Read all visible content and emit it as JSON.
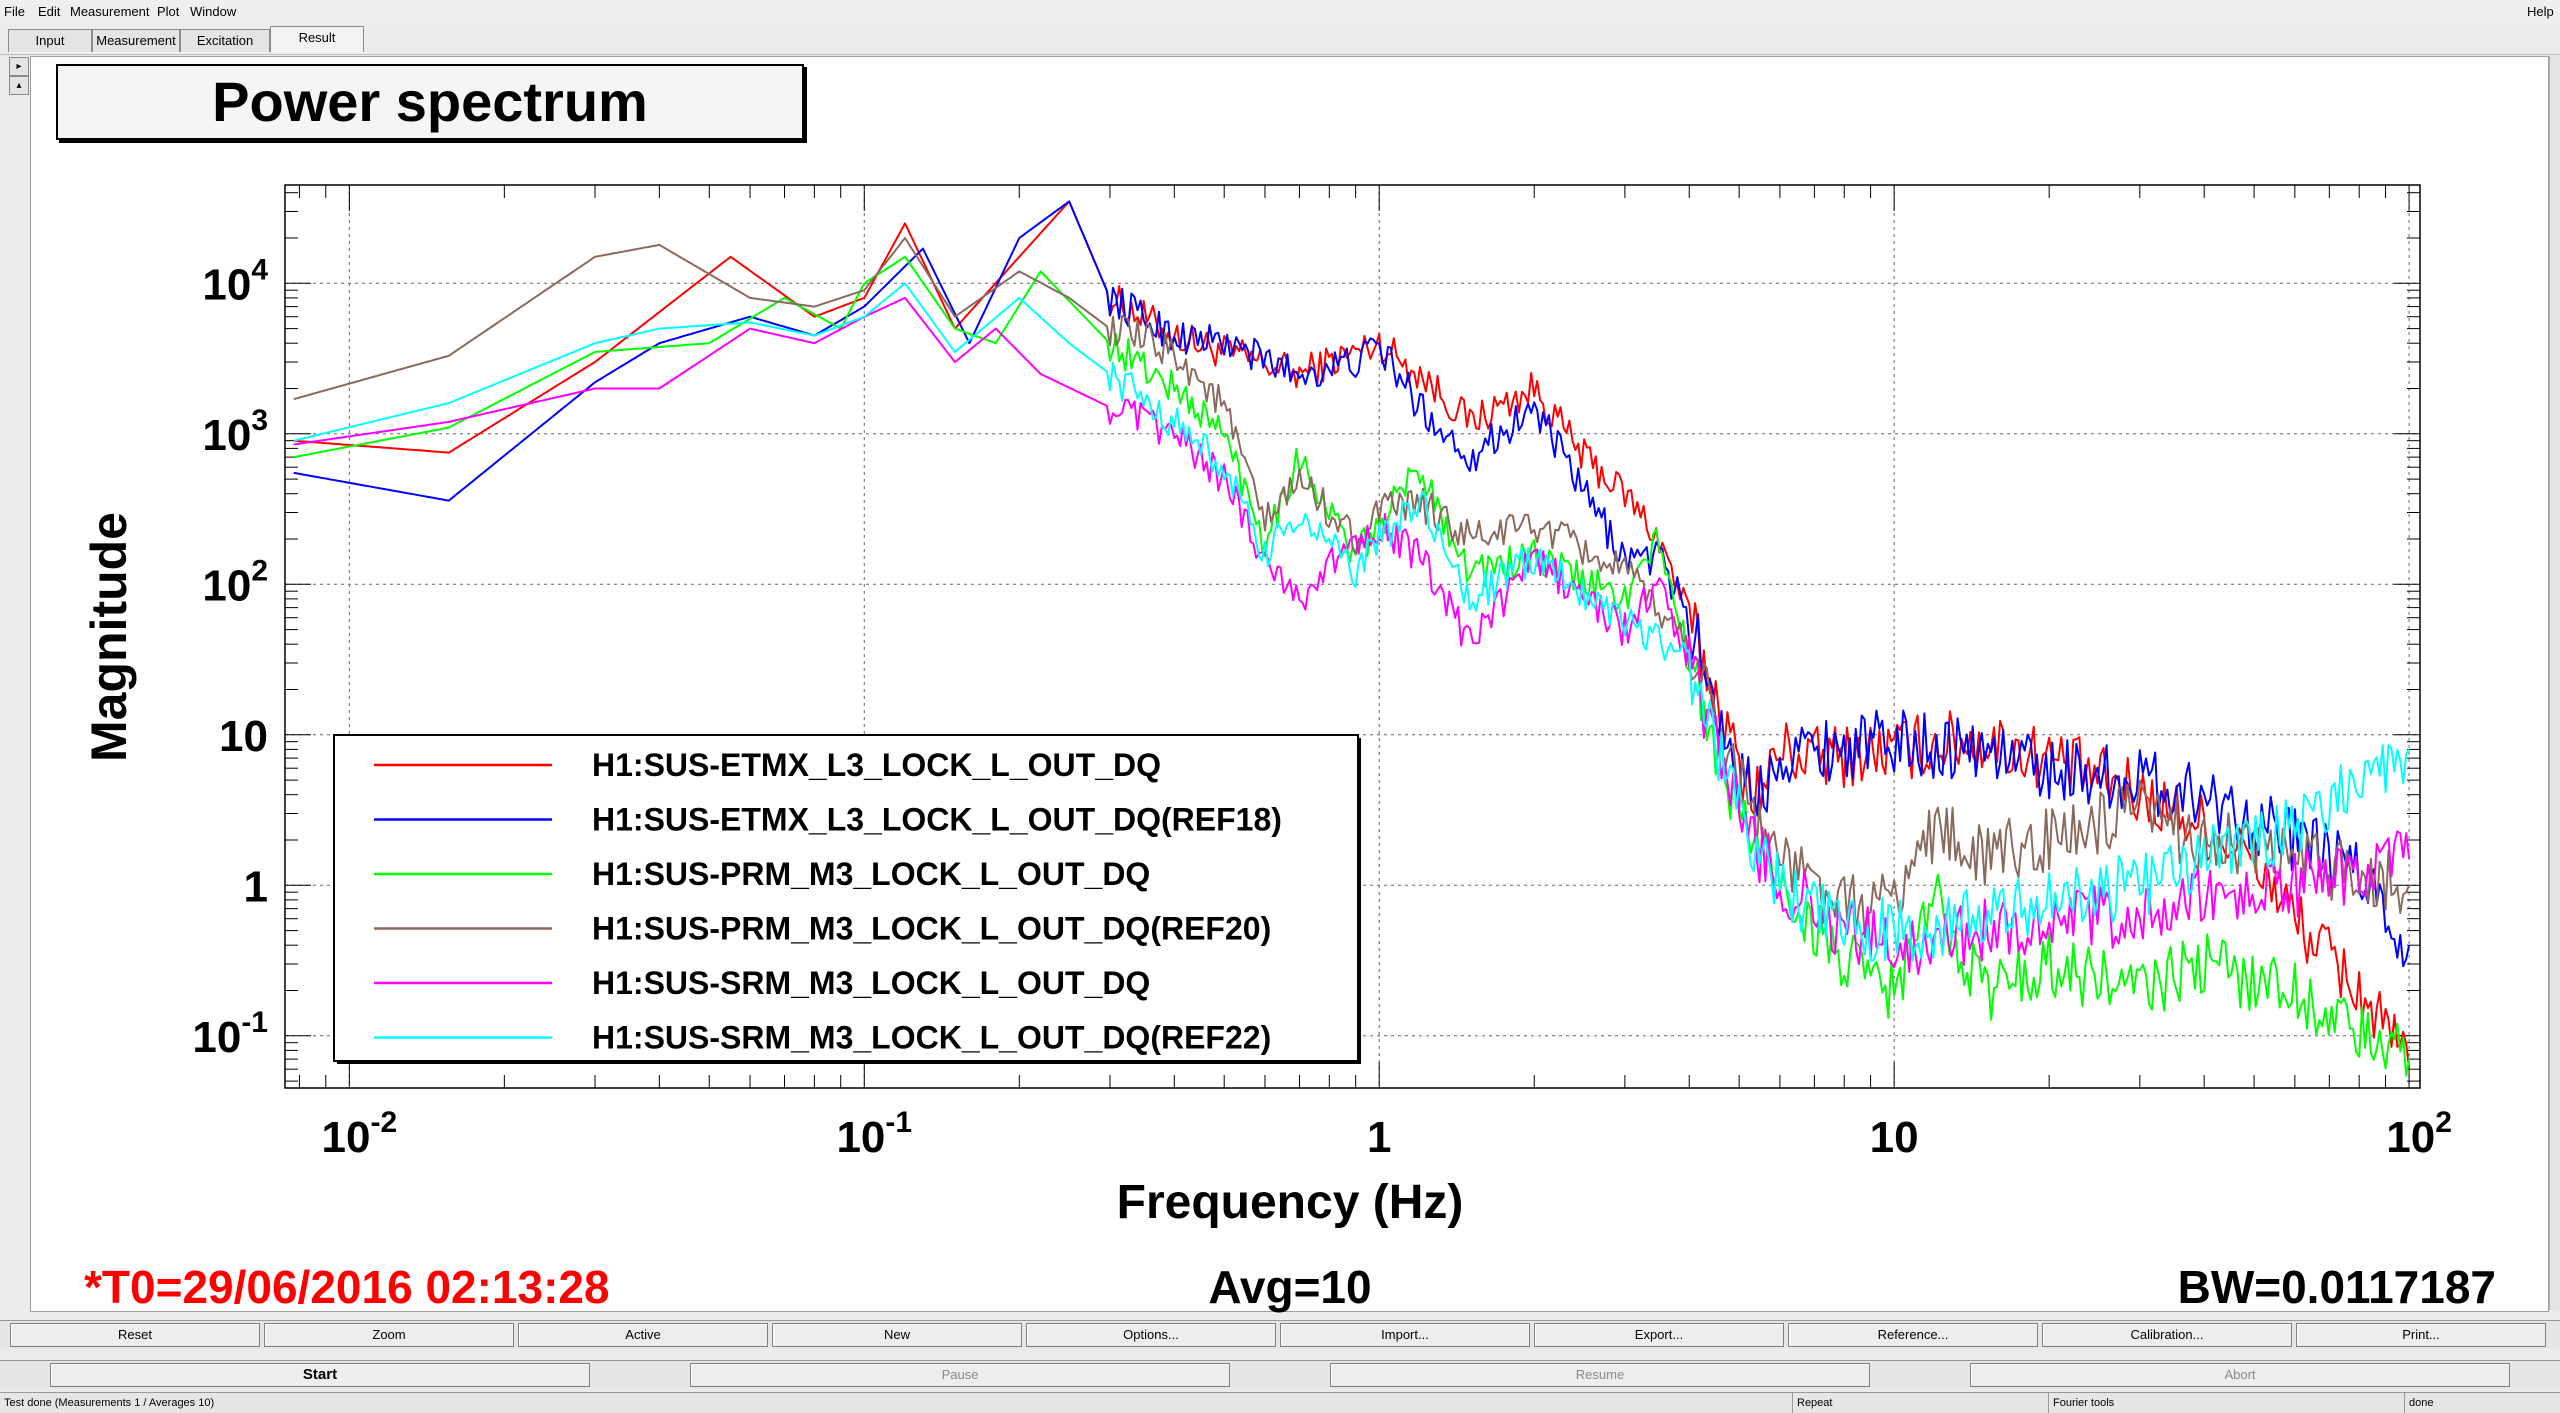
{
  "menu": {
    "file": "File",
    "edit": "Edit",
    "measurement": "Measurement",
    "plot": "Plot",
    "window": "Window",
    "help": "Help"
  },
  "tabs": {
    "input": "Input",
    "measurement": "Measurement",
    "excitation": "Excitation",
    "result": "Result"
  },
  "side_arrows": {
    "up": "▸",
    "down": "▴"
  },
  "plot_title": "Power spectrum",
  "footer": {
    "t0": "*T0=29/06/2016 02:13:28",
    "avg": "Avg=10",
    "bw": "BW=0.0117187"
  },
  "buttons_row1": {
    "reset": "Reset",
    "zoom": "Zoom",
    "active": "Active",
    "new": "New",
    "options": "Options...",
    "import": "Import...",
    "export": "Export...",
    "reference": "Reference...",
    "calibration": "Calibration...",
    "print": "Print..."
  },
  "buttons_row2": {
    "start": "Start",
    "pause": "Pause",
    "resume": "Resume",
    "abort": "Abort"
  },
  "status": {
    "message": "Test done (Measurements 1 / Averages 10)",
    "repeat": "Repeat",
    "fourier": "Fourier tools",
    "state": "done"
  },
  "chart_data": {
    "type": "line",
    "xlabel": "Frequency (Hz)",
    "ylabel": "Magnitude",
    "xscale": "log",
    "yscale": "log",
    "xlim": [
      0.0075,
      105
    ],
    "ylim": [
      0.045,
      45000
    ],
    "grid": true,
    "legend_position": "bottom-left",
    "x_ticks": [
      {
        "value": 0.01,
        "base": "10",
        "exp": "-2"
      },
      {
        "value": 0.1,
        "base": "10",
        "exp": "-1"
      },
      {
        "value": 1,
        "base": "1",
        "exp": ""
      },
      {
        "value": 10,
        "base": "10",
        "exp": ""
      },
      {
        "value": 100,
        "base": "10",
        "exp": "2"
      }
    ],
    "y_ticks": [
      {
        "value": 0.1,
        "base": "10",
        "exp": "-1"
      },
      {
        "value": 1,
        "base": "1",
        "exp": ""
      },
      {
        "value": 10,
        "base": "10",
        "exp": ""
      },
      {
        "value": 100,
        "base": "10",
        "exp": "2"
      },
      {
        "value": 1000,
        "base": "10",
        "exp": "3"
      },
      {
        "value": 10000,
        "base": "10",
        "exp": "4"
      }
    ],
    "series": [
      {
        "name": "H1:SUS-ETMX_L3_LOCK_L_OUT_DQ",
        "color": "#ff0000",
        "x": [
          0.0078,
          0.0156,
          0.03,
          0.055,
          0.08,
          0.1,
          0.12,
          0.15,
          0.2,
          0.25,
          0.3,
          0.4,
          0.5,
          0.7,
          0.9,
          1.0,
          1.2,
          1.5,
          2.0,
          2.5,
          3.0,
          3.5,
          4.0,
          5.0,
          5.5,
          6.0,
          7.0,
          10,
          13,
          15,
          20,
          30,
          40,
          50,
          60,
          80,
          100
        ],
        "y": [
          900,
          750,
          3000,
          15000,
          6000,
          8000,
          25000,
          5000,
          15000,
          35000,
          8000,
          4500,
          3500,
          2500,
          3500,
          4000,
          2500,
          1200,
          2000,
          700,
          400,
          200,
          60,
          6,
          4,
          8,
          7,
          8,
          9,
          9,
          7,
          4,
          2.5,
          1.5,
          0.6,
          0.2,
          0.06
        ]
      },
      {
        "name": "H1:SUS-ETMX_L3_LOCK_L_OUT_DQ(REF18)",
        "color": "#0000ff",
        "x": [
          0.0078,
          0.0156,
          0.03,
          0.04,
          0.06,
          0.08,
          0.1,
          0.13,
          0.16,
          0.2,
          0.25,
          0.3,
          0.4,
          0.5,
          0.7,
          0.9,
          1.0,
          1.2,
          1.5,
          2.0,
          2.5,
          3.0,
          3.5,
          4.0,
          5.0,
          5.5,
          6.0,
          7.0,
          10,
          15,
          20,
          30,
          40,
          60,
          80,
          100
        ],
        "y": [
          550,
          360,
          2200,
          4000,
          6000,
          4500,
          7000,
          17000,
          4000,
          20000,
          35000,
          8000,
          4500,
          4000,
          2500,
          3000,
          3800,
          1500,
          700,
          1500,
          400,
          150,
          150,
          60,
          5,
          4,
          8,
          8,
          9,
          8,
          6,
          5,
          4,
          2,
          1.2,
          0.4
        ]
      },
      {
        "name": "H1:SUS-PRM_M3_LOCK_L_OUT_DQ",
        "color": "#00ff00",
        "x": [
          0.0078,
          0.0156,
          0.03,
          0.05,
          0.07,
          0.09,
          0.1,
          0.12,
          0.15,
          0.18,
          0.22,
          0.3,
          0.4,
          0.5,
          0.6,
          0.7,
          0.9,
          1.0,
          1.2,
          1.5,
          2.0,
          3.0,
          3.5,
          4.0,
          5.0,
          6.0,
          8.0,
          10,
          12,
          15,
          20,
          30,
          40,
          60,
          80,
          100
        ],
        "y": [
          700,
          1100,
          3500,
          4000,
          8000,
          5000,
          10000,
          15000,
          5000,
          4000,
          12000,
          4000,
          2000,
          1000,
          200,
          700,
          150,
          250,
          600,
          120,
          150,
          80,
          200,
          30,
          3,
          1,
          0.3,
          0.2,
          0.8,
          0.2,
          0.3,
          0.2,
          0.3,
          0.2,
          0.1,
          0.07
        ]
      },
      {
        "name": "H1:SUS-PRM_M3_LOCK_L_OUT_DQ(REF20)",
        "color": "#8b6a5e",
        "x": [
          0.0078,
          0.0156,
          0.03,
          0.04,
          0.06,
          0.08,
          0.1,
          0.12,
          0.15,
          0.2,
          0.25,
          0.3,
          0.4,
          0.5,
          0.6,
          0.7,
          0.9,
          1.0,
          1.2,
          1.5,
          2.0,
          3.0,
          4.0,
          5.0,
          6.0,
          8.0,
          10,
          12,
          15,
          20,
          30,
          40,
          60,
          80,
          100
        ],
        "y": [
          1700,
          3300,
          15000,
          18000,
          8000,
          7000,
          9000,
          20000,
          6000,
          12000,
          8000,
          5000,
          3500,
          1500,
          250,
          500,
          200,
          300,
          350,
          200,
          250,
          120,
          40,
          5,
          1.5,
          0.7,
          0.8,
          2.5,
          1.5,
          2,
          3,
          2,
          1.5,
          1.2,
          1
        ]
      },
      {
        "name": "H1:SUS-SRM_M3_LOCK_L_OUT_DQ",
        "color": "#ff00ff",
        "x": [
          0.0078,
          0.0156,
          0.03,
          0.04,
          0.06,
          0.08,
          0.1,
          0.12,
          0.15,
          0.18,
          0.22,
          0.3,
          0.4,
          0.5,
          0.6,
          0.7,
          0.9,
          1.0,
          1.2,
          1.5,
          2.0,
          3.0,
          3.5,
          4.0,
          5.0,
          6.0,
          8.0,
          10,
          15,
          20,
          30,
          40,
          60,
          80,
          100
        ],
        "y": [
          850,
          1200,
          2000,
          2000,
          5000,
          4000,
          6000,
          8000,
          3000,
          5000,
          2500,
          1500,
          1000,
          500,
          150,
          80,
          200,
          250,
          150,
          40,
          150,
          50,
          100,
          30,
          3,
          1,
          0.5,
          0.4,
          0.5,
          0.6,
          0.6,
          0.8,
          1,
          1.2,
          1.5
        ]
      },
      {
        "name": "H1:SUS-SRM_M3_LOCK_L_OUT_DQ(REF22)",
        "color": "#00ffff",
        "x": [
          0.0078,
          0.0156,
          0.03,
          0.04,
          0.06,
          0.08,
          0.1,
          0.12,
          0.15,
          0.2,
          0.25,
          0.3,
          0.4,
          0.5,
          0.6,
          0.7,
          0.9,
          1.0,
          1.2,
          1.5,
          2.0,
          3.0,
          4.0,
          5.0,
          6.0,
          8.0,
          10,
          15,
          20,
          30,
          40,
          60,
          80,
          100
        ],
        "y": [
          900,
          1600,
          4000,
          5000,
          5500,
          4500,
          6000,
          10000,
          3500,
          8000,
          4000,
          2500,
          1200,
          600,
          150,
          300,
          120,
          200,
          350,
          80,
          150,
          60,
          30,
          3,
          1,
          0.5,
          0.5,
          0.6,
          0.8,
          1,
          1.5,
          2.5,
          5,
          8
        ]
      }
    ]
  }
}
